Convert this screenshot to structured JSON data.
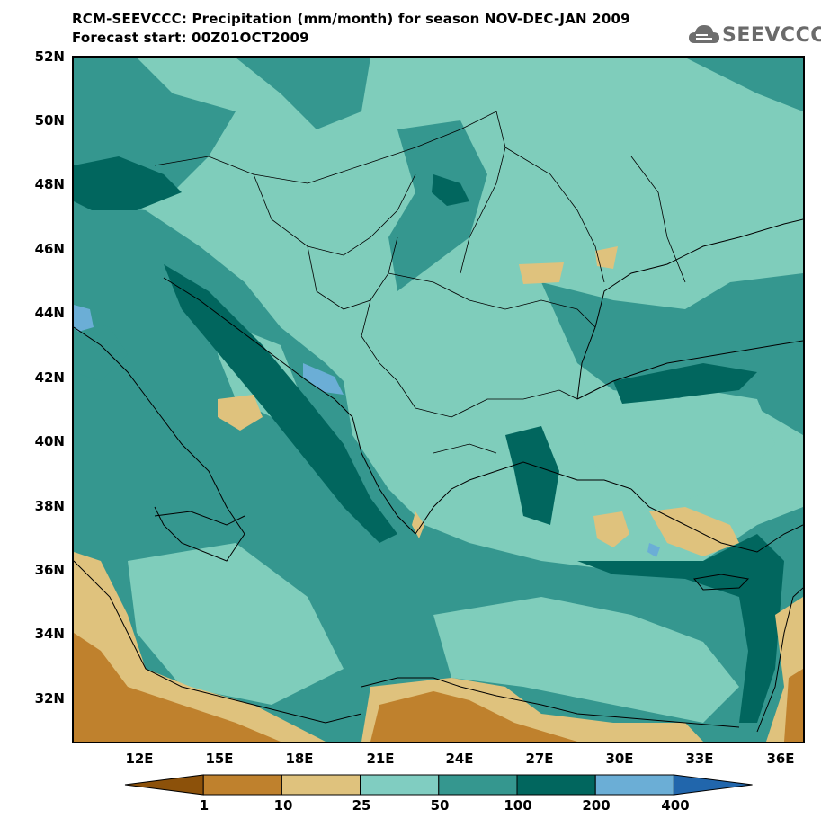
{
  "header": {
    "title_line1": "RCM-SEEVCCC: Precipitation (mm/month) for season NOV-DEC-JAN 2009",
    "title_line2": "Forecast start: 00Z01OCT2009"
  },
  "logo": {
    "text": "SEEVCCC",
    "icon": "cloud-logo-icon"
  },
  "map": {
    "lat_labels": [
      "52N",
      "50N",
      "48N",
      "46N",
      "44N",
      "42N",
      "40N",
      "38N",
      "36N",
      "34N",
      "32N"
    ],
    "lon_labels": [
      "12E",
      "15E",
      "18E",
      "21E",
      "24E",
      "27E",
      "30E",
      "33E",
      "36E"
    ]
  },
  "colorbar": {
    "labels": [
      "1",
      "10",
      "25",
      "50",
      "100",
      "200",
      "400"
    ],
    "colors": [
      "#8c510a",
      "#bf812d",
      "#dfc27d",
      "#80cdc1",
      "#35978f",
      "#01665e",
      "#6baed6",
      "#2166ac"
    ]
  }
}
